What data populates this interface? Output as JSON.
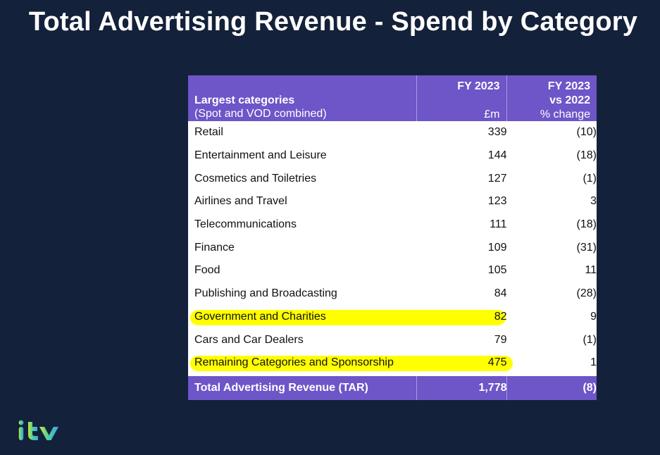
{
  "title": "Total Advertising Revenue - Spend by Category",
  "table": {
    "header": {
      "col1_line1": "Largest categories",
      "col1_line2": "(Spot and VOD combined)",
      "col2_line1": "FY 2023",
      "col2_unit": "£m",
      "col3_line1": "FY 2023",
      "col3_line2": "vs 2022",
      "col3_line3": "% change"
    },
    "rows": [
      {
        "category": "Retail",
        "fy2023": "339",
        "change": "(10)"
      },
      {
        "category": "Entertainment and Leisure",
        "fy2023": "144",
        "change": "(18)"
      },
      {
        "category": "Cosmetics and Toiletries",
        "fy2023": "127",
        "change": "(1)"
      },
      {
        "category": "Airlines and Travel",
        "fy2023": "123",
        "change": "3"
      },
      {
        "category": "Telecommunications",
        "fy2023": "111",
        "change": "(18)"
      },
      {
        "category": "Finance",
        "fy2023": "109",
        "change": "(31)"
      },
      {
        "category": "Food",
        "fy2023": "105",
        "change": "11"
      },
      {
        "category": "Publishing and Broadcasting",
        "fy2023": "84",
        "change": "(28)"
      },
      {
        "category": "Government and Charities",
        "fy2023": "82",
        "change": "9"
      },
      {
        "category": "Cars and Car Dealers",
        "fy2023": "79",
        "change": "(1)"
      },
      {
        "category": "Remaining Categories and Sponsorship",
        "fy2023": "475",
        "change": "1"
      }
    ],
    "total": {
      "category": "Total Advertising Revenue (TAR)",
      "fy2023": "1,778",
      "change": "(8)"
    }
  },
  "logo": "itv",
  "colors": {
    "background": "#13213a",
    "header": "#6e55c8",
    "highlight": "#ffff00"
  }
}
